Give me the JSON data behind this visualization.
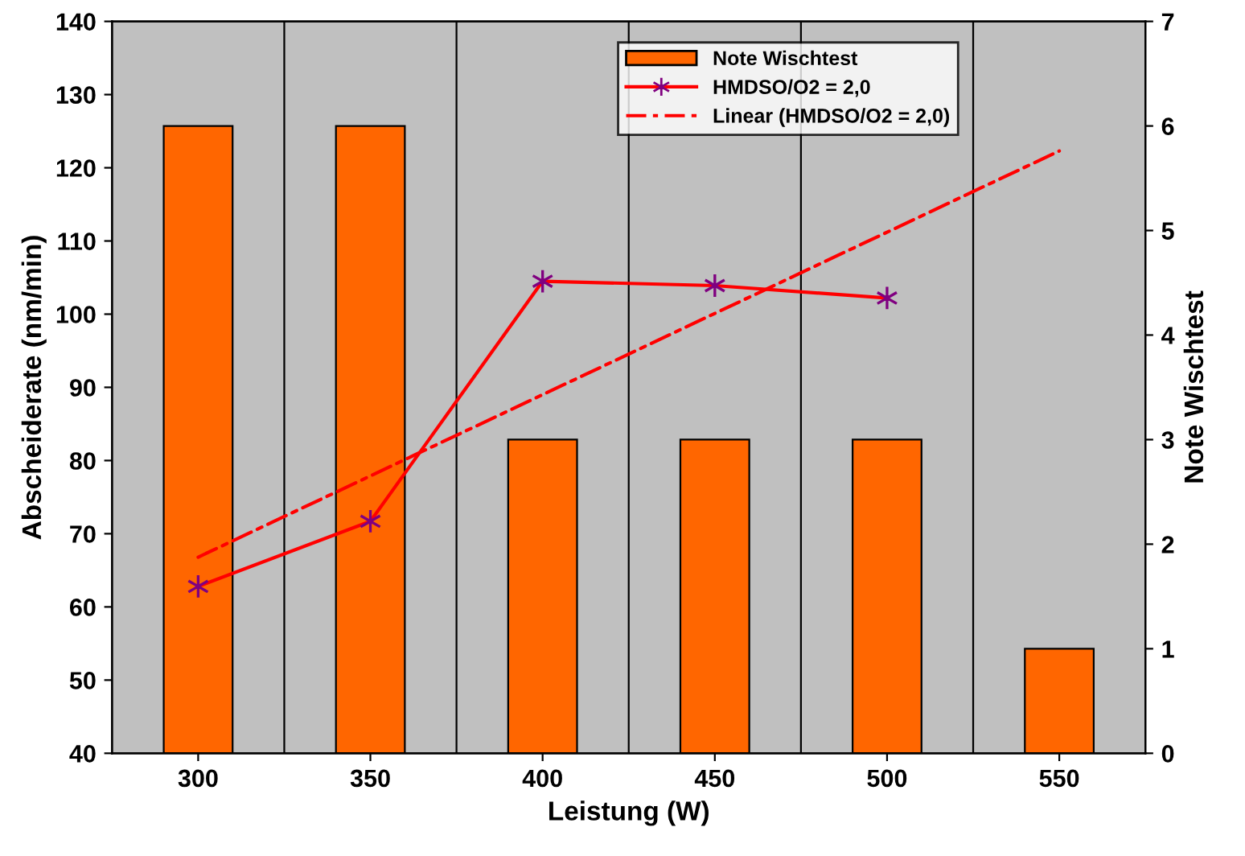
{
  "chart_data": {
    "type": "bar",
    "xlabel": "Leistung (W)",
    "ylabel": "Abscheiderate (nm/min)",
    "y2label": "Note Wischtest",
    "categories": [
      "300",
      "350",
      "400",
      "450",
      "500",
      "550"
    ],
    "series": [
      {
        "name": "Note Wischtest",
        "axis": "y2",
        "color": "#ff6600",
        "values": [
          6,
          6,
          3,
          3,
          3,
          1
        ]
      },
      {
        "name": "HMDSO/O2 = 2,0",
        "type": "line",
        "axis": "y",
        "color": "#ff0000",
        "marker": "cross",
        "line_style": "solid",
        "values": [
          62.8,
          71.7,
          104.5,
          103.9,
          102.2,
          null
        ]
      },
      {
        "name": "Linear (HMDSO/O2 = 2,0)",
        "type": "line",
        "axis": "y",
        "color": "#ff0000",
        "marker": "none",
        "line_style": "dashed",
        "values": [
          66.8,
          77.9,
          89.0,
          100.1,
          111.2,
          122.3
        ]
      }
    ],
    "ylim": [
      40,
      140
    ],
    "yticks": [
      40,
      50,
      60,
      70,
      80,
      90,
      100,
      110,
      120,
      130,
      140
    ],
    "y2lim": [
      0,
      7
    ],
    "y2ticks": [
      0,
      1,
      2,
      3,
      4,
      5,
      6,
      7
    ],
    "grid": "x",
    "legend": "top right"
  }
}
